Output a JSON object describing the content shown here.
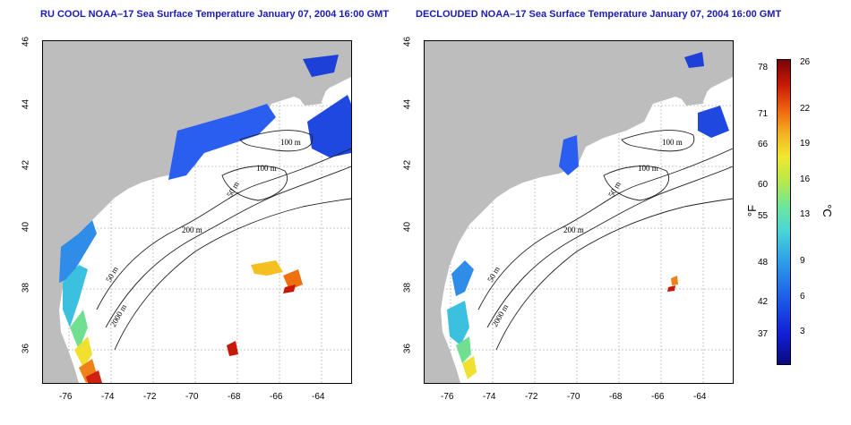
{
  "left_title": "RU COOL NOAA–17 Sea Surface Temperature January 07, 2004 16:00 GMT",
  "right_title": "DECLOUDED NOAA–17 Sea Surface Temperature January 07, 2004 16:00 GMT",
  "lat_ticks": [
    "46",
    "44",
    "42",
    "40",
    "38",
    "36"
  ],
  "lon_ticks": [
    "-76",
    "-74",
    "-72",
    "-70",
    "-68",
    "-66",
    "-64"
  ],
  "contours": {
    "left": [
      "100 m",
      "100 m",
      "50 m",
      "200 m",
      "50 m",
      "2000 m"
    ],
    "right": [
      "100 m",
      "100 m",
      "50 m",
      "200 m",
      "50 m",
      "2000 m"
    ]
  },
  "colorbar": {
    "fahrenheit_unit": "°F",
    "celsius_unit": "°C",
    "fahrenheit_ticks": [
      "78",
      "71",
      "66",
      "60",
      "55",
      "48",
      "42",
      "37"
    ],
    "celsius_ticks": [
      "26",
      "22",
      "19",
      "16",
      "13",
      "9",
      "6",
      "3"
    ]
  },
  "colors": {
    "land": "#bdbdbd",
    "title": "#1a1ab8",
    "contour": "#202020"
  }
}
